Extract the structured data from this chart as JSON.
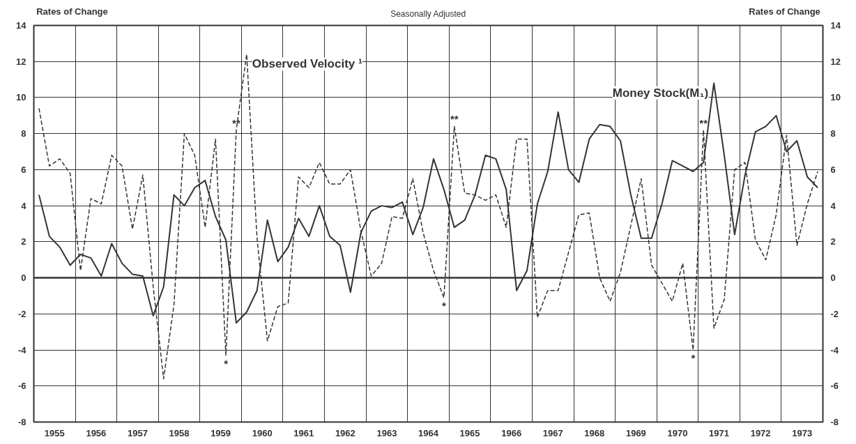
{
  "chart_data": {
    "type": "line",
    "subtitle": "Seasonally Adjusted",
    "ylabel": "Rates of Change",
    "y2label": "Rates of Change",
    "x": [
      1955.125,
      1955.375,
      1955.625,
      1955.875,
      1956.125,
      1956.375,
      1956.625,
      1956.875,
      1957.125,
      1957.375,
      1957.625,
      1957.875,
      1958.125,
      1958.375,
      1958.625,
      1958.875,
      1959.125,
      1959.375,
      1959.625,
      1959.875,
      1960.125,
      1960.375,
      1960.625,
      1960.875,
      1961.125,
      1961.375,
      1961.625,
      1961.875,
      1962.125,
      1962.375,
      1962.625,
      1962.875,
      1963.125,
      1963.375,
      1963.625,
      1963.875,
      1964.125,
      1964.375,
      1964.625,
      1964.875,
      1965.125,
      1965.375,
      1965.625,
      1965.875,
      1966.125,
      1966.375,
      1966.625,
      1966.875,
      1967.125,
      1967.375,
      1967.625,
      1967.875,
      1968.125,
      1968.375,
      1968.625,
      1968.875,
      1969.125,
      1969.375,
      1969.625,
      1969.875,
      1970.125,
      1970.375,
      1970.625,
      1970.875,
      1971.125,
      1971.375,
      1971.625,
      1971.875,
      1972.125,
      1972.375,
      1972.625,
      1972.875,
      1973.125,
      1973.375,
      1973.625,
      1973.875
    ],
    "series": [
      {
        "name": "Money Stock(M₁)",
        "color": "#333333",
        "line_style": "solid",
        "values": [
          4.6,
          2.3,
          1.7,
          0.7,
          1.3,
          1.1,
          0.1,
          1.9,
          0.8,
          0.2,
          0.1,
          -2.1,
          -0.5,
          4.6,
          4.0,
          5.0,
          5.4,
          3.4,
          2.1,
          -2.5,
          -1.9,
          -0.7,
          3.2,
          0.9,
          1.7,
          3.3,
          2.3,
          4.0,
          2.3,
          1.8,
          -0.8,
          2.5,
          3.7,
          4.0,
          3.9,
          4.2,
          2.4,
          3.9,
          6.6,
          4.9,
          2.8,
          3.2,
          4.6,
          6.8,
          6.6,
          4.9,
          -0.7,
          0.4,
          4.1,
          5.9,
          9.2,
          6.0,
          5.3,
          7.7,
          8.5,
          8.4,
          7.6,
          4.6,
          2.2,
          2.2,
          4.1,
          6.5,
          6.2,
          5.9,
          6.4,
          10.8,
          6.8,
          2.4,
          5.7,
          8.1,
          8.4,
          9.0,
          7.0,
          7.6,
          5.6,
          5.0
        ]
      },
      {
        "name": "Observed Velocity ¹",
        "color": "#333333",
        "line_style": "dashed",
        "values": [
          9.4,
          6.2,
          6.6,
          5.8,
          0.4,
          4.4,
          4.1,
          6.8,
          6.2,
          2.7,
          5.7,
          -0.5,
          -5.6,
          -1.5,
          8.0,
          6.8,
          2.8,
          7.7,
          -4.3,
          8.2,
          12.4,
          2.2,
          -3.5,
          -1.6,
          -1.4,
          5.6,
          5.0,
          6.4,
          5.2,
          5.2,
          6.0,
          2.6,
          0.1,
          0.8,
          3.4,
          3.3,
          5.5,
          2.5,
          0.4,
          -1.1,
          8.4,
          4.7,
          4.6,
          4.3,
          4.6,
          2.8,
          7.7,
          7.7,
          -2.2,
          -0.7,
          -0.7,
          1.4,
          3.5,
          3.6,
          0.0,
          -1.3,
          0.3,
          2.9,
          5.5,
          0.7,
          -0.3,
          -1.3,
          0.8,
          -4.0,
          8.2,
          -2.8,
          -1.2,
          6.0,
          6.4,
          2.1,
          1.0,
          3.5,
          7.9,
          1.8,
          4.1,
          5.9
        ]
      }
    ],
    "xlim": [
      1955,
      1974
    ],
    "xticks": [
      {
        "value": 1956,
        "label": null
      },
      {
        "value": 1957,
        "label": null
      },
      {
        "value": 1958,
        "label": null
      },
      {
        "value": 1959,
        "label": null
      },
      {
        "value": 1960,
        "label": null
      },
      {
        "value": 1961,
        "label": null
      },
      {
        "value": 1962,
        "label": null
      },
      {
        "value": 1963,
        "label": null
      },
      {
        "value": 1964,
        "label": null
      },
      {
        "value": 1965,
        "label": null
      },
      {
        "value": 1966,
        "label": null
      },
      {
        "value": 1967,
        "label": null
      },
      {
        "value": 1968,
        "label": null
      },
      {
        "value": 1969,
        "label": null
      },
      {
        "value": 1970,
        "label": null
      },
      {
        "value": 1971,
        "label": null
      },
      {
        "value": 1972,
        "label": null
      },
      {
        "value": 1973,
        "label": null
      },
      {
        "value": 1955.5,
        "label": "1955"
      },
      {
        "value": 1956.5,
        "label": "1956"
      },
      {
        "value": 1957.5,
        "label": "1957"
      },
      {
        "value": 1958.5,
        "label": "1958"
      },
      {
        "value": 1959.5,
        "label": "1959"
      },
      {
        "value": 1960.5,
        "label": "1960"
      },
      {
        "value": 1961.5,
        "label": "1961"
      },
      {
        "value": 1962.5,
        "label": "1962"
      },
      {
        "value": 1963.5,
        "label": "1963"
      },
      {
        "value": 1964.5,
        "label": "1964"
      },
      {
        "value": 1965.5,
        "label": "1965"
      },
      {
        "value": 1966.5,
        "label": "1966"
      },
      {
        "value": 1967.5,
        "label": "1967"
      },
      {
        "value": 1968.5,
        "label": "1968"
      },
      {
        "value": 1969.5,
        "label": "1969"
      },
      {
        "value": 1970.5,
        "label": "1970"
      },
      {
        "value": 1971.5,
        "label": "1971"
      },
      {
        "value": 1972.5,
        "label": "1972"
      },
      {
        "value": 1973.5,
        "label": "1973"
      }
    ],
    "ylim": [
      -8,
      14
    ],
    "yticks": [
      -8,
      -6,
      -4,
      -2,
      0,
      2,
      4,
      6,
      8,
      10,
      12,
      14
    ],
    "y2lim": [
      -8,
      14
    ],
    "y2ticks": [
      -8,
      -6,
      -4,
      -2,
      0,
      2,
      4,
      6,
      8,
      10,
      12,
      14
    ],
    "grid": true,
    "marker": "none",
    "ref_lines": [
      {
        "axis": "y",
        "value": 0,
        "color": "#333333"
      }
    ],
    "annotations": [
      {
        "text": "*",
        "x": 1959.625,
        "y": -4.3
      },
      {
        "text": "**",
        "x": 1959.875,
        "y": 8.2
      },
      {
        "text": "*",
        "x": 1964.875,
        "y": -1.1
      },
      {
        "text": "**",
        "x": 1965.125,
        "y": 8.4
      },
      {
        "text": "*",
        "x": 1970.875,
        "y": -4.0
      },
      {
        "text": "**",
        "x": 1971.125,
        "y": 8.2
      }
    ]
  }
}
